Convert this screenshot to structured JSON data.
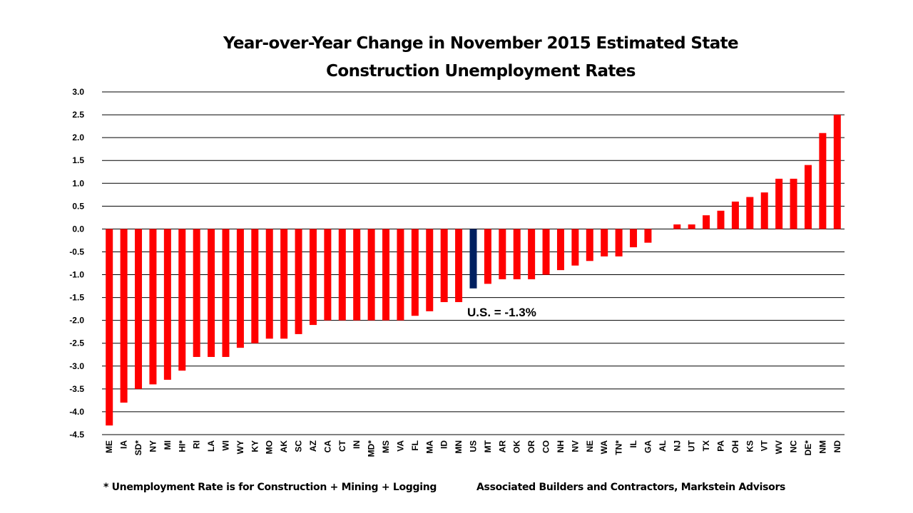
{
  "chart_data": {
    "type": "bar",
    "title_line1": "Year-over-Year Change in November 2015 Estimated State",
    "title_line2": "Construction Unemployment Rates",
    "xlabel": "",
    "ylabel": "",
    "ylim": [
      -4.5,
      3.0
    ],
    "yticks": [
      "3.0",
      "2.5",
      "2.0",
      "1.5",
      "1.0",
      "0.5",
      "0.0",
      "-0.5",
      "-1.0",
      "-1.5",
      "-2.0",
      "-2.5",
      "-3.0",
      "-3.5",
      "-4.0",
      "-4.5"
    ],
    "grid": true,
    "categories": [
      "ME",
      "IA",
      "SD*",
      "NY",
      "MI",
      "HI*",
      "RI",
      "LA",
      "WI",
      "WY",
      "KY",
      "MO",
      "AK",
      "SC",
      "AZ",
      "CA",
      "CT",
      "IN",
      "MD*",
      "MS",
      "VA",
      "FL",
      "MA",
      "ID",
      "MN",
      "US",
      "MT",
      "AR",
      "OK",
      "OR",
      "CO",
      "NH",
      "NV",
      "NE",
      "WA",
      "TN*",
      "IL",
      "GA",
      "AL",
      "NJ",
      "UT",
      "TX",
      "PA",
      "OH",
      "KS",
      "VT",
      "WV",
      "NC",
      "DE*",
      "NM",
      "ND"
    ],
    "values": [
      -4.3,
      -3.8,
      -3.5,
      -3.4,
      -3.3,
      -3.1,
      -2.8,
      -2.8,
      -2.8,
      -2.6,
      -2.5,
      -2.4,
      -2.4,
      -2.3,
      -2.1,
      -2.0,
      -2.0,
      -2.0,
      -2.0,
      -2.0,
      -2.0,
      -1.9,
      -1.8,
      -1.6,
      -1.6,
      -1.3,
      -1.2,
      -1.1,
      -1.1,
      -1.1,
      -1.0,
      -0.9,
      -0.8,
      -0.7,
      -0.6,
      -0.6,
      -0.4,
      -0.3,
      0.0,
      0.1,
      0.1,
      0.3,
      0.4,
      0.6,
      0.7,
      0.8,
      1.1,
      1.1,
      1.4,
      2.1,
      2.5
    ],
    "highlight_category": "US",
    "annotation": "U.S. = -1.3%",
    "colors": {
      "bar": "#ff0000",
      "highlight": "#002060",
      "grid": "#000000"
    }
  },
  "footer": {
    "note": "* Unemployment Rate is for Construction + Mining + Logging",
    "source": "Associated Builders and Contractors, Markstein Advisors"
  }
}
